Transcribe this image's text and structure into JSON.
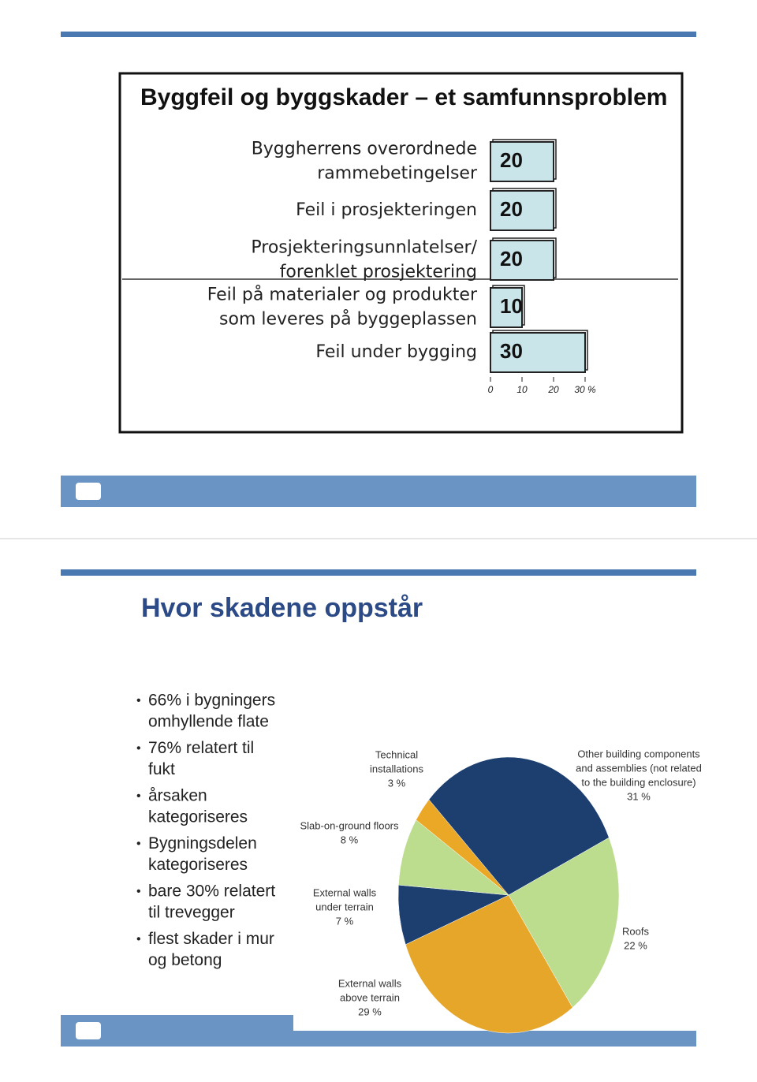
{
  "slides": [
    {
      "title": "Byggfeil og byggskader – et samfunnsproblem",
      "chart_data": {
        "type": "hbar",
        "categories": [
          [
            "Byggherrens overordnede",
            "rammebetingelser"
          ],
          [
            "Feil i prosjekteringen"
          ],
          [
            "Prosjekteringsunnlatelser/",
            "forenklet prosjektering"
          ],
          [
            "Feil på materialer og produkter",
            "som leveres på byggeplassen"
          ],
          [
            "Feil under bygging"
          ]
        ],
        "values": [
          20,
          20,
          20,
          10,
          30
        ],
        "color": "#c9e5ea",
        "xlim": [
          0,
          30
        ],
        "xticks": [
          0,
          10,
          20,
          {
            "value": 30,
            "label": "30 %"
          }
        ]
      }
    },
    {
      "title": "Hvor skadene oppstår",
      "bullets": [
        [
          "66% i bygningers",
          "omhyllende flate"
        ],
        [
          "76% relatert til",
          "fukt"
        ],
        [
          "årsaken",
          "kategoriseres"
        ],
        [
          "Bygningsdelen",
          "kategoriseres"
        ],
        [
          "bare 30% relatert",
          "til trevegger"
        ],
        [
          "flest skader i mur",
          "og betong"
        ]
      ],
      "chart_data": {
        "type": "pie",
        "labels": [
          [
            "Technical",
            "installations"
          ],
          [
            "Other building components",
            "and assemblies (not related",
            "to the building enclosure)"
          ],
          [
            "Roofs"
          ],
          [
            "External walls",
            "above terrain"
          ],
          [
            "External walls",
            "under terrain"
          ],
          [
            "Slab-on-ground floors"
          ]
        ],
        "values": [
          3,
          31,
          22,
          29,
          7,
          8
        ],
        "value_labels": [
          "3 %",
          "31 %",
          "22 %",
          "29 %",
          "7 %",
          "8 %"
        ],
        "colors": [
          "#eaa826",
          "#1c3f70",
          "#bcdc8e",
          "#e6a62a",
          "#1c3f70",
          "#bcdc8e"
        ]
      }
    }
  ]
}
